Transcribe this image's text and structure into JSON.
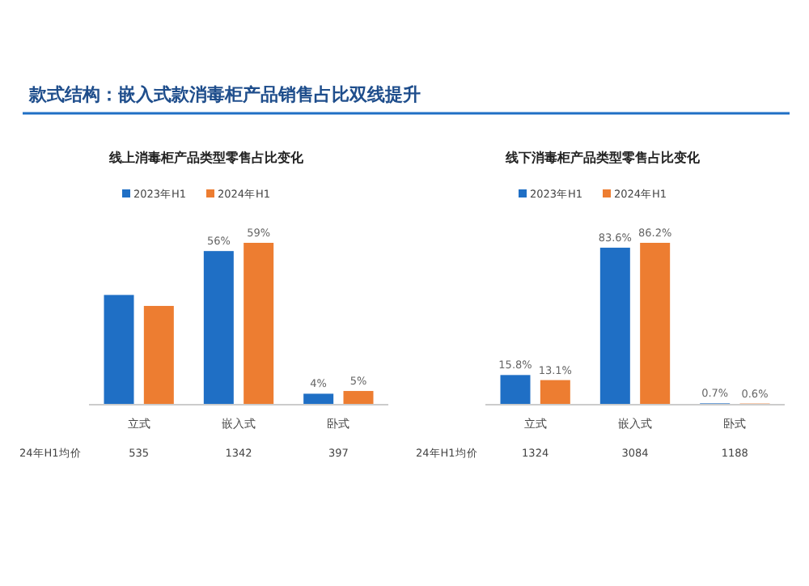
{
  "chart_data": [
    {
      "type": "bar",
      "subtitle": "款式结构：嵌入式款消毒柜产品销售占比双线提升",
      "title": "线上消毒柜产品类型零售占比变化",
      "categories": [
        "立式",
        "嵌入式",
        "卧式"
      ],
      "legend": "top",
      "series": [
        {
          "name": "2023年H1",
          "color": "#1f6fc5",
          "values": [
            40,
            56,
            4
          ],
          "value_labels": [
            null,
            "56%",
            "4%"
          ]
        },
        {
          "name": "2024年H1",
          "color": "#ed7d31",
          "values": [
            36,
            59,
            5
          ],
          "value_labels": [
            null,
            "59%",
            "5%"
          ]
        }
      ],
      "annotations": [
        "24年H1均价",
        "535",
        "1342",
        "397"
      ]
    },
    {
      "type": "bar",
      "title": "线下消毒柜产品类型零售占比变化",
      "categories": [
        "立式",
        "嵌入式",
        "卧式"
      ],
      "legend": "top",
      "series": [
        {
          "name": "2023年H1",
          "color": "#1f6fc5",
          "values": [
            15.8,
            83.6,
            0.7
          ],
          "value_labels": [
            "15.8%",
            "83.6%",
            "0.7%"
          ]
        },
        {
          "name": "2024年H1",
          "color": "#ed7d31",
          "values": [
            13.1,
            86.2,
            0.6
          ],
          "value_labels": [
            "13.1%",
            "86.2%",
            "0.6%"
          ]
        }
      ],
      "annotations": [
        "24年H1均价",
        "1324",
        "3084",
        "1188"
      ]
    }
  ]
}
